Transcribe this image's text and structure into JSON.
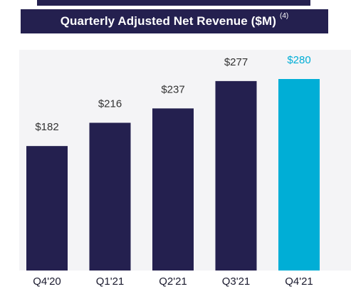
{
  "header": {
    "title": "Quarterly Adjusted Net Revenue ($M)",
    "footnote": "(4)"
  },
  "colors": {
    "primary": "#24204f",
    "highlight": "#00aed6",
    "label_dark": "#333333"
  },
  "chart_data": {
    "type": "bar",
    "title": "Quarterly Adjusted Net Revenue ($M)",
    "categories": [
      "Q4'20",
      "Q1'21",
      "Q2'21",
      "Q3'21",
      "Q4'21"
    ],
    "values": [
      182,
      216,
      237,
      277,
      280
    ],
    "value_labels": [
      "$182",
      "$216",
      "$237",
      "$277",
      "$280"
    ],
    "highlighted_category": "Q4'21",
    "xlabel": "",
    "ylabel": "",
    "ylim": [
      0,
      280
    ],
    "grid": false,
    "legend": "none"
  }
}
